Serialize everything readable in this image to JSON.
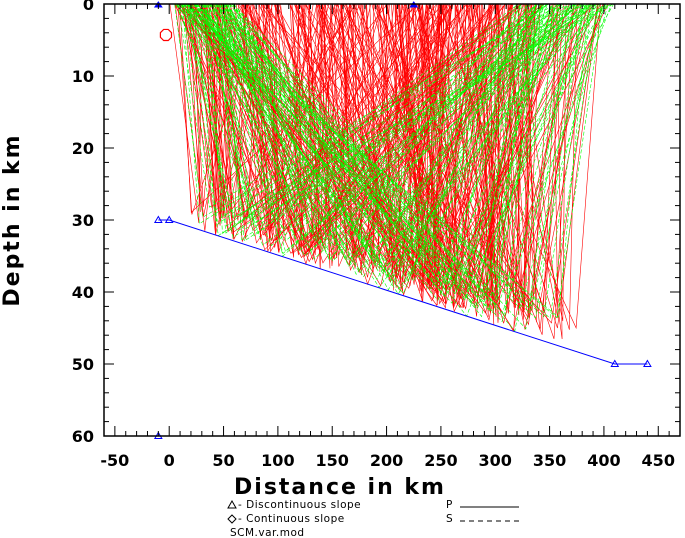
{
  "chart_data": {
    "type": "line",
    "title": "",
    "xlabel": "Distance in km",
    "ylabel": "Depth in km",
    "xlim": [
      -60,
      470
    ],
    "ylim": [
      0,
      60
    ],
    "y_inverted": true,
    "xticks": [
      -50,
      0,
      50,
      100,
      150,
      200,
      250,
      300,
      350,
      400,
      450
    ],
    "yticks": [
      0,
      10,
      20,
      30,
      40,
      50,
      60
    ],
    "interface_moho": {
      "color": "#0000ff",
      "x": [
        -10,
        0,
        410,
        440
      ],
      "y": [
        30,
        30,
        50,
        50
      ]
    },
    "surface_line": {
      "color": "#0000ff",
      "x": [
        -60,
        470
      ],
      "y": [
        0,
        0
      ]
    },
    "bottom_line": {
      "color": "#0000ff",
      "x": [
        -60,
        470
      ],
      "y": [
        60,
        60
      ]
    },
    "discontinuous_slope_markers": [
      {
        "x": -10,
        "y": 30
      },
      {
        "x": 0,
        "y": 30
      },
      {
        "x": 410,
        "y": 50
      },
      {
        "x": 440,
        "y": 50
      },
      {
        "x": -10,
        "y": 60
      }
    ],
    "surface_markers": [
      {
        "x": -10,
        "y": 0
      },
      {
        "x": 225,
        "y": 0
      }
    ],
    "source": {
      "x": -3,
      "y": 4.3,
      "color": "#ff0000"
    },
    "ray_families": [
      {
        "phase": "P",
        "color": "#ff0000",
        "from_x": [
          5,
          340
        ],
        "turn": "moho",
        "to_x": [
          0,
          410
        ]
      },
      {
        "phase": "S",
        "color": "#00ff00",
        "from_x": [
          5,
          60
        ],
        "turn": "moho",
        "to_x": [
          320,
          410
        ]
      }
    ],
    "legend": {
      "items": [
        {
          "symbol": "triangle",
          "label": "- Discontinuous slope"
        },
        {
          "symbol": "diamond",
          "label": "- Continuous slope"
        }
      ],
      "phases": [
        {
          "label": "P",
          "style": "solid"
        },
        {
          "label": "S",
          "style": "dashed"
        }
      ],
      "model": "SCM.var.mod",
      "placement": "bottom-center"
    }
  }
}
